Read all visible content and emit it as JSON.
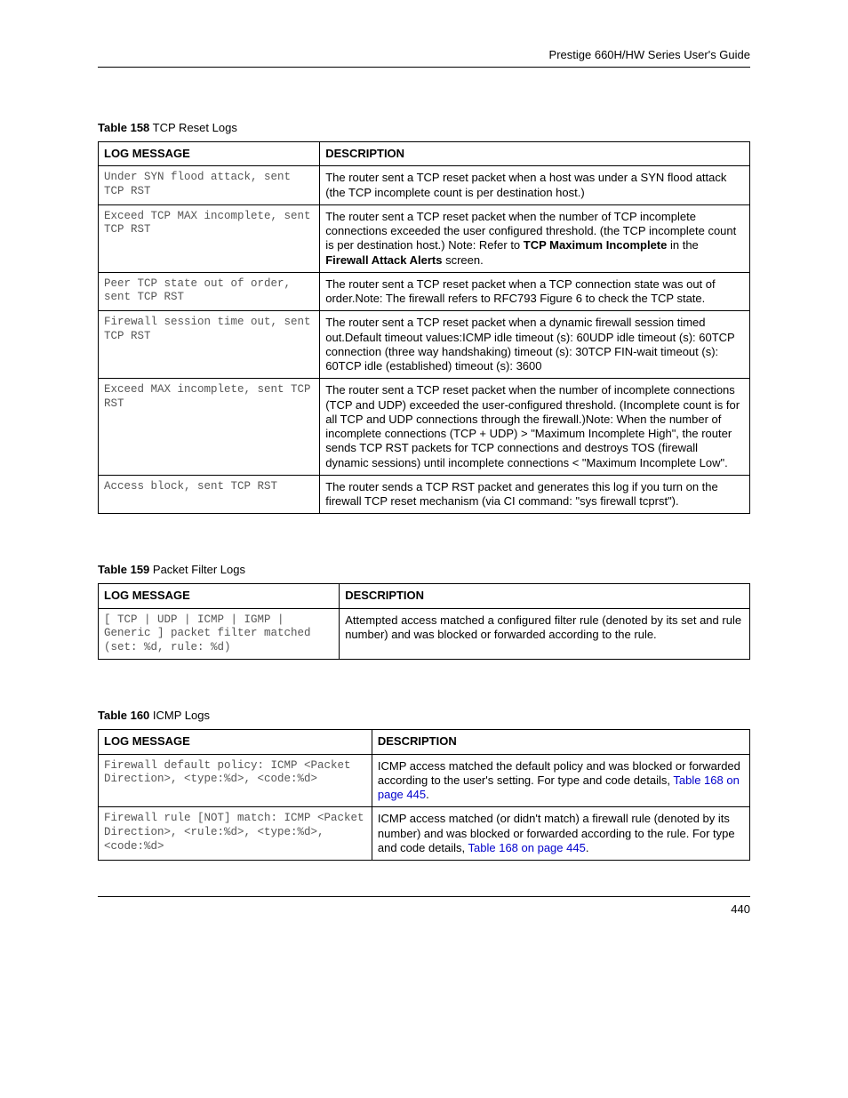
{
  "header": {
    "guide_title": "Prestige 660H/HW Series User's Guide"
  },
  "footer": {
    "page_number": "440"
  },
  "tables": {
    "t158": {
      "caption_bold": "Table 158",
      "caption_rest": "   TCP Reset Logs",
      "col1": "LOG MESSAGE",
      "col2": "DESCRIPTION",
      "rows": [
        {
          "msg": "Under SYN flood attack, sent TCP RST",
          "desc_plain": "The router sent a TCP reset packet when a host was under a SYN flood attack (the TCP incomplete count is per destination host.)"
        },
        {
          "msg": "Exceed TCP MAX incomplete, sent TCP RST",
          "desc_pre": "The router sent a TCP reset packet when the number of TCP incomplete connections exceeded the user configured threshold. (the TCP incomplete count is per destination host.) Note: Refer to ",
          "desc_bold1": "TCP Maximum Incomplete",
          "desc_mid": " in the ",
          "desc_bold2": "Firewall Attack Alerts",
          "desc_post": " screen."
        },
        {
          "msg": "Peer TCP state out of order, sent TCP RST",
          "desc_plain": "The router sent a TCP reset packet when a TCP connection state was out of order.Note: The firewall refers to RFC793 Figure 6 to check the TCP state."
        },
        {
          "msg": "Firewall session time out, sent TCP RST",
          "desc_plain": "The router sent a TCP reset packet when a dynamic firewall session timed out.Default timeout values:ICMP idle timeout (s): 60UDP idle timeout (s): 60TCP connection (three way handshaking) timeout (s): 30TCP FIN-wait timeout (s): 60TCP idle (established) timeout (s): 3600"
        },
        {
          "msg": "Exceed MAX incomplete, sent TCP RST",
          "desc_plain": "The router sent a TCP reset packet when the number of incomplete connections (TCP and UDP) exceeded the user-configured threshold. (Incomplete count is for all TCP and UDP connections through the firewall.)Note: When the number of incomplete connections (TCP + UDP) > \"Maximum Incomplete High\", the router sends TCP RST packets for TCP connections and destroys TOS (firewall dynamic sessions) until incomplete connections < \"Maximum Incomplete Low\"."
        },
        {
          "msg": "Access block, sent TCP RST",
          "desc_plain": "The router sends a TCP RST packet and generates this log if you turn on the firewall TCP reset mechanism (via CI command: \"sys firewall tcprst\")."
        }
      ]
    },
    "t159": {
      "caption_bold": "Table 159",
      "caption_rest": "   Packet Filter Logs",
      "col1": "LOG MESSAGE",
      "col2": "DESCRIPTION",
      "rows": [
        {
          "msg": "[ TCP | UDP | ICMP | IGMP | Generic ] packet filter matched (set: %d, rule: %d)",
          "desc_plain": "Attempted access matched a configured filter rule (denoted by its set and rule number) and was blocked or forwarded according to the rule."
        }
      ]
    },
    "t160": {
      "caption_bold": "Table 160",
      "caption_rest": "   ICMP Logs",
      "col1": "LOG MESSAGE",
      "col2": "DESCRIPTION",
      "rows": [
        {
          "msg": "Firewall default policy: ICMP <Packet Direction>, <type:%d>, <code:%d>",
          "desc_pre": "ICMP access matched the default policy and was blocked or forwarded according to the user's setting. For type and code details, ",
          "link": "Table 168 on page 445",
          "desc_post": "."
        },
        {
          "msg": "Firewall rule [NOT] match: ICMP <Packet Direction>, <rule:%d>, <type:%d>, <code:%d>",
          "desc_pre": "ICMP access matched (or didn't match) a firewall rule (denoted by its number) and was blocked or forwarded according to the rule. For type and code details, ",
          "link": "Table 168 on page 445",
          "desc_post": "."
        }
      ]
    }
  }
}
